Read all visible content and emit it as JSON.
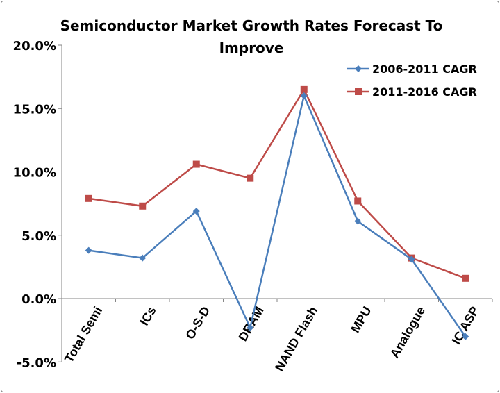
{
  "chart_data": {
    "type": "line",
    "title": "Semiconductor Market Growth Rates Forecast To Improve",
    "title_lines": [
      "Semiconductor Market Growth Rates Forecast To",
      "Improve"
    ],
    "xlabel": "",
    "ylabel": "",
    "categories": [
      "Total Semi",
      "ICs",
      "O-S-D",
      "DRAM",
      "NAND Flash",
      "MPU",
      "Analogue",
      "IC ASP"
    ],
    "ylim": [
      -5,
      20
    ],
    "yticks": [
      -5,
      0,
      5,
      10,
      15,
      20
    ],
    "ytick_labels": [
      "-5.0%",
      "0.0%",
      "5.0%",
      "10.0%",
      "15.0%",
      "20.0%"
    ],
    "grid": false,
    "legend_position": "top-right",
    "series": [
      {
        "name": "2006-2011 CAGR",
        "color": "#4a7ebb",
        "marker": "diamond",
        "values": [
          3.8,
          3.2,
          6.9,
          -2.3,
          16.0,
          6.1,
          3.1,
          -3.0
        ]
      },
      {
        "name": "2011-2016 CAGR",
        "color": "#be4b48",
        "marker": "square",
        "values": [
          7.9,
          7.3,
          10.6,
          9.5,
          16.5,
          7.7,
          3.2,
          1.6
        ]
      }
    ]
  }
}
